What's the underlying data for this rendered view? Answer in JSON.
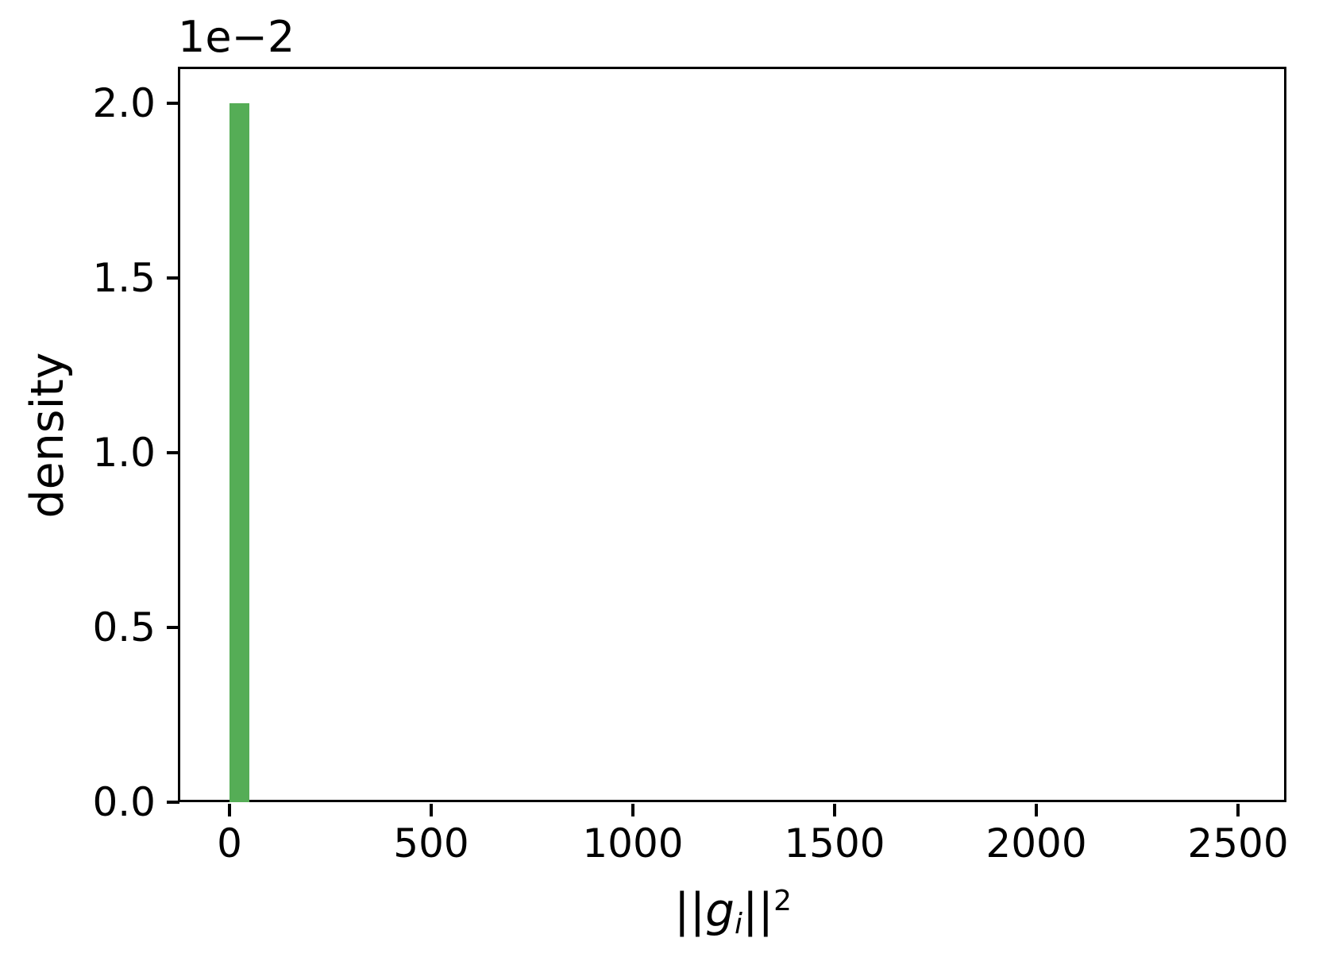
{
  "chart_data": {
    "type": "bar",
    "subtype": "histogram",
    "title": "",
    "xlabel": "||g_i||^2",
    "xlabel_parts": {
      "open": "||",
      "symbol": "g",
      "subscript": "i",
      "close": "||",
      "exponent": "2"
    },
    "ylabel": "density",
    "y_offset_factor": "1e−2",
    "xlim": [
      -122,
      2620
    ],
    "ylim": [
      0,
      0.021
    ],
    "ylim_display_1e2": [
      0,
      2.098
    ],
    "xticks": [
      0,
      500,
      1000,
      1500,
      2000,
      2500
    ],
    "xtick_labels": [
      "0",
      "500",
      "1000",
      "1500",
      "2000",
      "2500"
    ],
    "yticks_display_1e2": [
      0.0,
      0.5,
      1.0,
      1.5,
      2.0
    ],
    "ytick_labels": [
      "0.0",
      "0.5",
      "1.0",
      "1.5",
      "2.0"
    ],
    "grid": false,
    "legend": null,
    "bars": [
      {
        "x0": 0,
        "x1": 50,
        "density": 0.02,
        "height_display_1e2": 2.0
      }
    ],
    "bar_color": "#55ad56",
    "spine_color": "#000000",
    "background_color": "#ffffff"
  }
}
